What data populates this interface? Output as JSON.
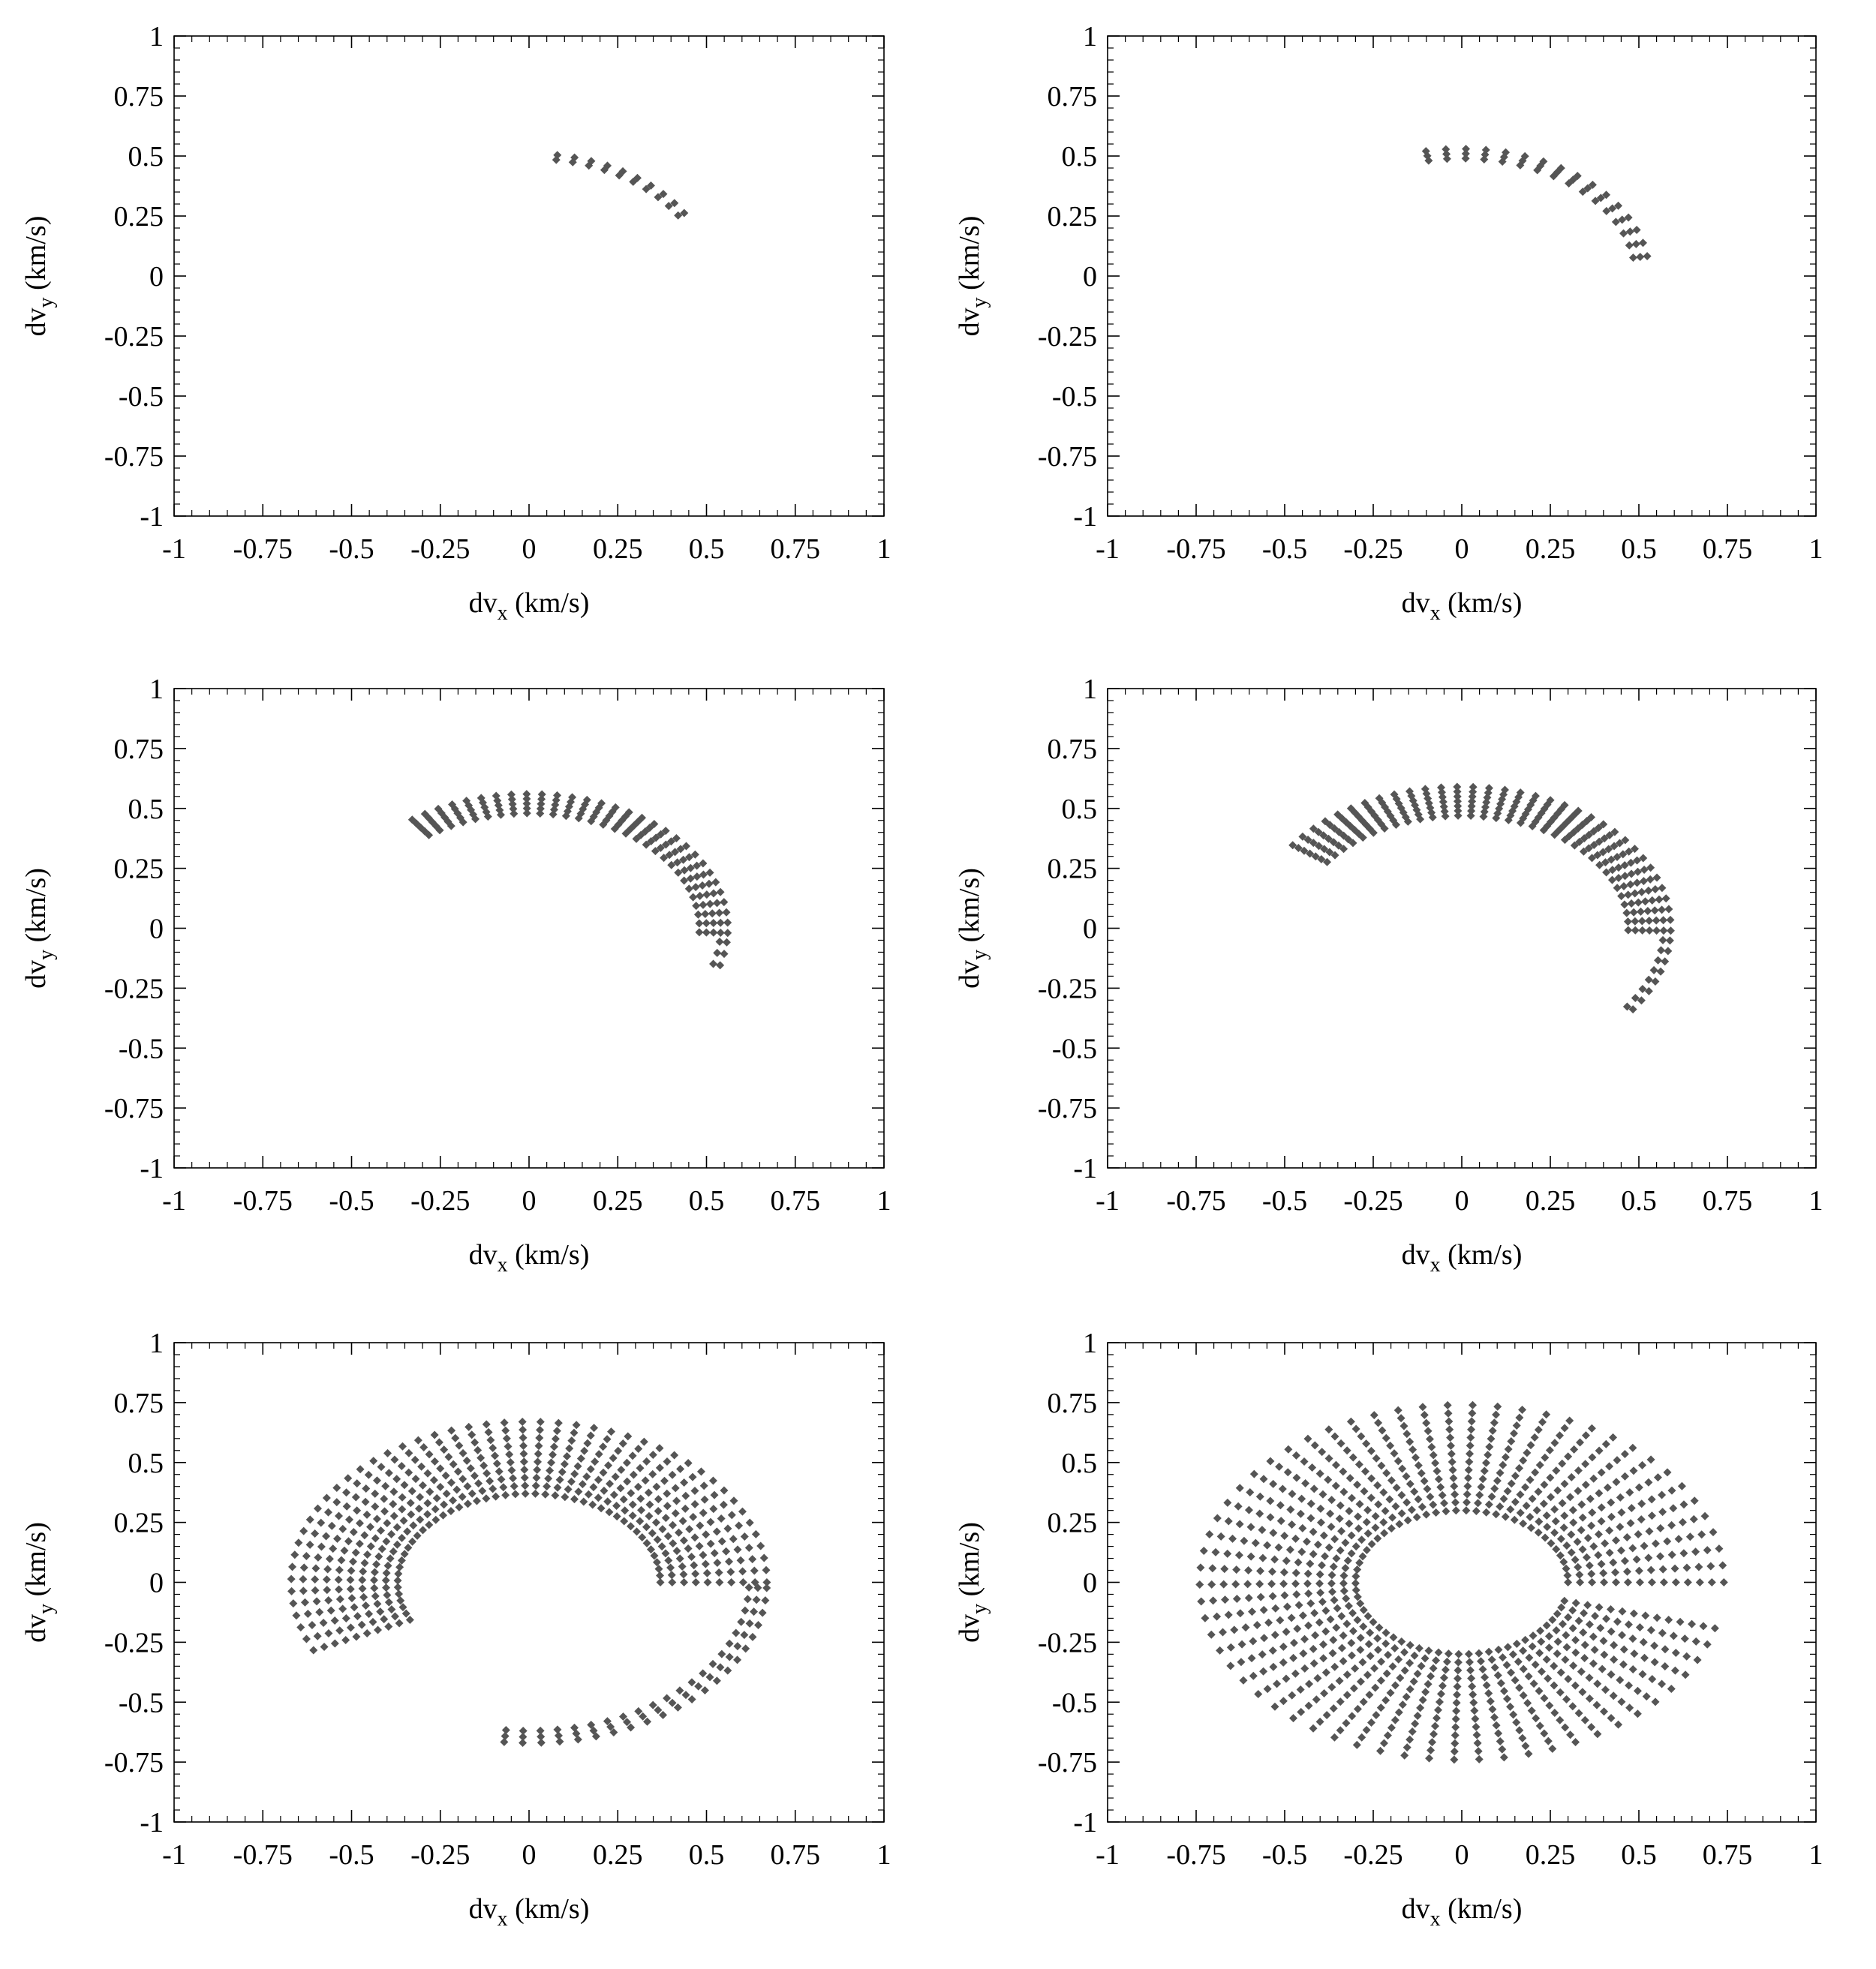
{
  "chart_data": [
    {
      "type": "scatter",
      "panel": "top-left",
      "xlabel": "dv_x (km/s)",
      "ylabel": "dv_y (km/s)",
      "xlim": [
        -1,
        1
      ],
      "ylim": [
        -1,
        1
      ],
      "xticks": [
        "-1",
        "-0.75",
        "-0.5",
        "-0.25",
        "0",
        "0.25",
        "0.5",
        "0.75",
        "1"
      ],
      "yticks": [
        "1",
        "0.75",
        "0.5",
        "0.25",
        "0",
        "-0.25",
        "-0.5",
        "-0.75",
        "-1"
      ],
      "marker_color": "#555555",
      "grid": false,
      "arc": {
        "r_min": 0.49,
        "r_max": 0.51,
        "n_radial": 2,
        "start_deg": 81,
        "end_deg": 31,
        "n_angular": 10
      },
      "extra_arcs": []
    },
    {
      "type": "scatter",
      "panel": "top-right",
      "xlabel": "dv_x (km/s)",
      "ylabel": "dv_y (km/s)",
      "xlim": [
        -1,
        1
      ],
      "ylim": [
        -1,
        1
      ],
      "xticks": [
        "-1",
        "-0.75",
        "-0.5",
        "-0.25",
        "0",
        "0.25",
        "0.5",
        "0.75",
        "1"
      ],
      "yticks": [
        "1",
        "0.75",
        "0.5",
        "0.25",
        "0",
        "-0.25",
        "-0.5",
        "-0.75",
        "-1"
      ],
      "marker_color": "#555555",
      "grid": false,
      "arc": {
        "r_min": 0.49,
        "r_max": 0.53,
        "n_radial": 3,
        "start_deg": 101,
        "end_deg": 9,
        "n_angular": 16
      },
      "extra_arcs": []
    },
    {
      "type": "scatter",
      "panel": "middle-left",
      "xlabel": "dv_x (km/s)",
      "ylabel": "dv_y (km/s)",
      "xlim": [
        -1,
        1
      ],
      "ylim": [
        -1,
        1
      ],
      "xticks": [
        "-1",
        "-0.75",
        "-0.5",
        "-0.25",
        "0",
        "0.25",
        "0.5",
        "0.75",
        "1"
      ],
      "yticks": [
        "1",
        "0.75",
        "0.5",
        "0.25",
        "0",
        "-0.25",
        "-0.5",
        "-0.75",
        "-1"
      ],
      "marker_color": "#555555",
      "grid": false,
      "arc": {
        "r_min": 0.48,
        "r_max": 0.56,
        "n_radial": 5,
        "start_deg": 126,
        "end_deg": -2,
        "n_angular": 30
      },
      "extra_arcs": [
        {
          "r_min": 0.54,
          "r_max": 0.56,
          "n_radial": 2,
          "start_deg": -6,
          "end_deg": -16,
          "n_angular": 3
        }
      ]
    },
    {
      "type": "scatter",
      "panel": "middle-right",
      "xlabel": "dv_x (km/s)",
      "ylabel": "dv_y (km/s)",
      "xlim": [
        -1,
        1
      ],
      "ylim": [
        -1,
        1
      ],
      "xticks": [
        "-1",
        "-0.75",
        "-0.5",
        "-0.25",
        "0",
        "0.25",
        "0.5",
        "0.75",
        "1"
      ],
      "yticks": [
        "1",
        "0.75",
        "0.5",
        "0.25",
        "0",
        "-0.25",
        "-0.5",
        "-0.75",
        "-1"
      ],
      "marker_color": "#555555",
      "grid": false,
      "arc": {
        "r_min": 0.47,
        "r_max": 0.59,
        "n_radial": 7,
        "start_deg": 144,
        "end_deg": -1,
        "n_angular": 34
      },
      "extra_arcs": [
        {
          "r_min": 0.57,
          "r_max": 0.59,
          "n_radial": 2,
          "start_deg": -5,
          "end_deg": -35,
          "n_angular": 8
        }
      ]
    },
    {
      "type": "scatter",
      "panel": "bottom-left",
      "xlabel": "dv_x (km/s)",
      "ylabel": "dv_y (km/s)",
      "xlim": [
        -1,
        1
      ],
      "ylim": [
        -1,
        1
      ],
      "xticks": [
        "-1",
        "-0.75",
        "-0.5",
        "-0.25",
        "0",
        "0.25",
        "0.5",
        "0.75",
        "1"
      ],
      "yticks": [
        "1",
        "0.75",
        "0.5",
        "0.25",
        "0",
        "-0.25",
        "-0.5",
        "-0.75",
        "-1"
      ],
      "marker_color": "#555555",
      "grid": false,
      "arc": {
        "r_min": 0.37,
        "r_max": 0.67,
        "n_radial": 10,
        "start_deg": 205,
        "end_deg": 0,
        "n_angular": 48
      },
      "extra_arcs": [
        {
          "r_min": 0.62,
          "r_max": 0.67,
          "n_radial": 3,
          "start_deg": -2,
          "end_deg": -96,
          "n_angular": 22
        }
      ]
    },
    {
      "type": "scatter",
      "panel": "bottom-right",
      "xlabel": "dv_x (km/s)",
      "ylabel": "dv_y (km/s)",
      "xlim": [
        -1,
        1
      ],
      "ylim": [
        -1,
        1
      ],
      "xticks": [
        "-1",
        "-0.75",
        "-0.5",
        "-0.25",
        "0",
        "0.25",
        "0.5",
        "0.75",
        "1"
      ],
      "yticks": [
        "1",
        "0.75",
        "0.5",
        "0.25",
        "0",
        "-0.25",
        "-0.5",
        "-0.75",
        "-1"
      ],
      "marker_color": "#555555",
      "grid": false,
      "arc": {
        "r_min": 0.3,
        "r_max": 0.74,
        "n_radial": 14,
        "start_deg": 345,
        "end_deg": 0,
        "n_angular": 64
      },
      "extra_arcs": []
    }
  ]
}
